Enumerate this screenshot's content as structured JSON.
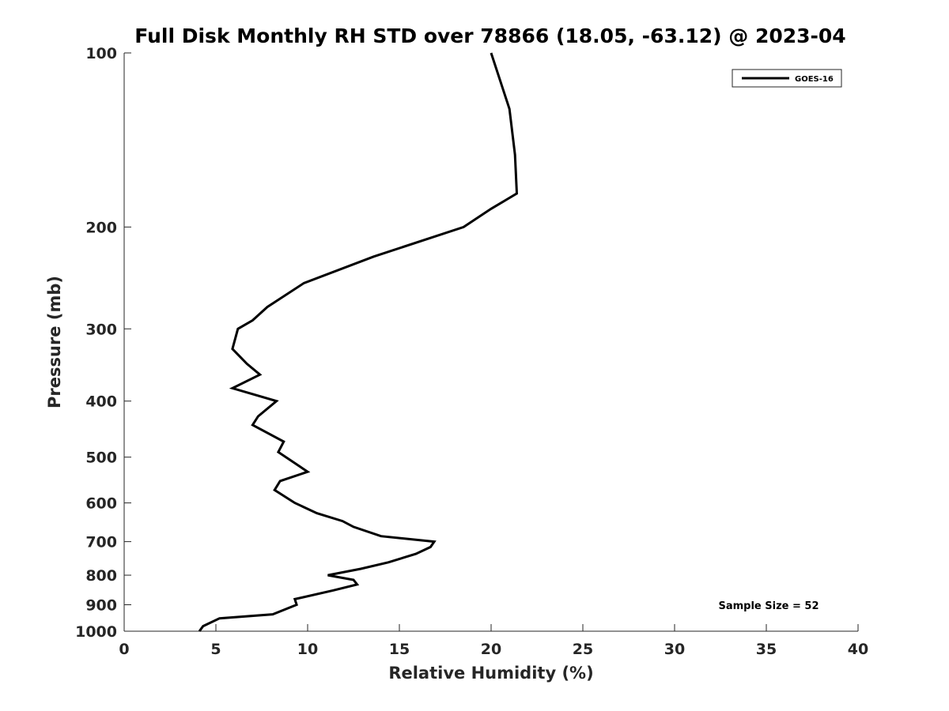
{
  "chart_data": {
    "type": "line",
    "title": "Full Disk Monthly RH STD over 78866 (18.05, -63.12) @ 2023-04",
    "xlabel": "Relative Humidity (%)",
    "ylabel": "Pressure (mb)",
    "xlim": [
      0,
      40
    ],
    "ylim": [
      100,
      1000
    ],
    "y_scale": "log",
    "y_reversed": true,
    "x_ticks": [
      0,
      5,
      10,
      15,
      20,
      25,
      30,
      35,
      40
    ],
    "x_tick_labels": [
      "0",
      "5",
      "10",
      "15",
      "20",
      "25",
      "30",
      "35",
      "40"
    ],
    "y_ticks": [
      100,
      200,
      300,
      400,
      500,
      600,
      700,
      800,
      900,
      1000
    ],
    "y_tick_labels": [
      "100",
      "200",
      "300",
      "400",
      "500",
      "600",
      "700",
      "800",
      "900",
      "1000"
    ],
    "grid": false,
    "legend_position": "top-right",
    "series": [
      {
        "name": "GOES-16",
        "color": "#000000",
        "points": [
          [
            20.0,
            100
          ],
          [
            21.0,
            125
          ],
          [
            21.3,
            150
          ],
          [
            21.4,
            175
          ],
          [
            20.0,
            186
          ],
          [
            18.5,
            200
          ],
          [
            13.6,
            225
          ],
          [
            9.8,
            250
          ],
          [
            7.8,
            275
          ],
          [
            7.0,
            290
          ],
          [
            6.2,
            300
          ],
          [
            5.9,
            325
          ],
          [
            6.7,
            345
          ],
          [
            7.4,
            360
          ],
          [
            5.9,
            380
          ],
          [
            8.3,
            400
          ],
          [
            7.3,
            425
          ],
          [
            7.0,
            440
          ],
          [
            8.7,
            470
          ],
          [
            8.4,
            490
          ],
          [
            9.3,
            512
          ],
          [
            10.0,
            530
          ],
          [
            8.5,
            550
          ],
          [
            8.2,
            570
          ],
          [
            9.3,
            600
          ],
          [
            10.5,
            625
          ],
          [
            11.9,
            645
          ],
          [
            12.5,
            660
          ],
          [
            14.0,
            685
          ],
          [
            16.9,
            700
          ],
          [
            16.7,
            715
          ],
          [
            15.9,
            735
          ],
          [
            14.4,
            760
          ],
          [
            12.9,
            780
          ],
          [
            11.1,
            800
          ],
          [
            12.5,
            815
          ],
          [
            12.7,
            830
          ],
          [
            11.4,
            850
          ],
          [
            9.3,
            880
          ],
          [
            9.4,
            900
          ],
          [
            8.1,
            935
          ],
          [
            5.2,
            950
          ],
          [
            4.3,
            980
          ],
          [
            4.1,
            1000
          ]
        ]
      }
    ],
    "annotation": "Sample Size = 52",
    "axis_color": "#262626"
  }
}
